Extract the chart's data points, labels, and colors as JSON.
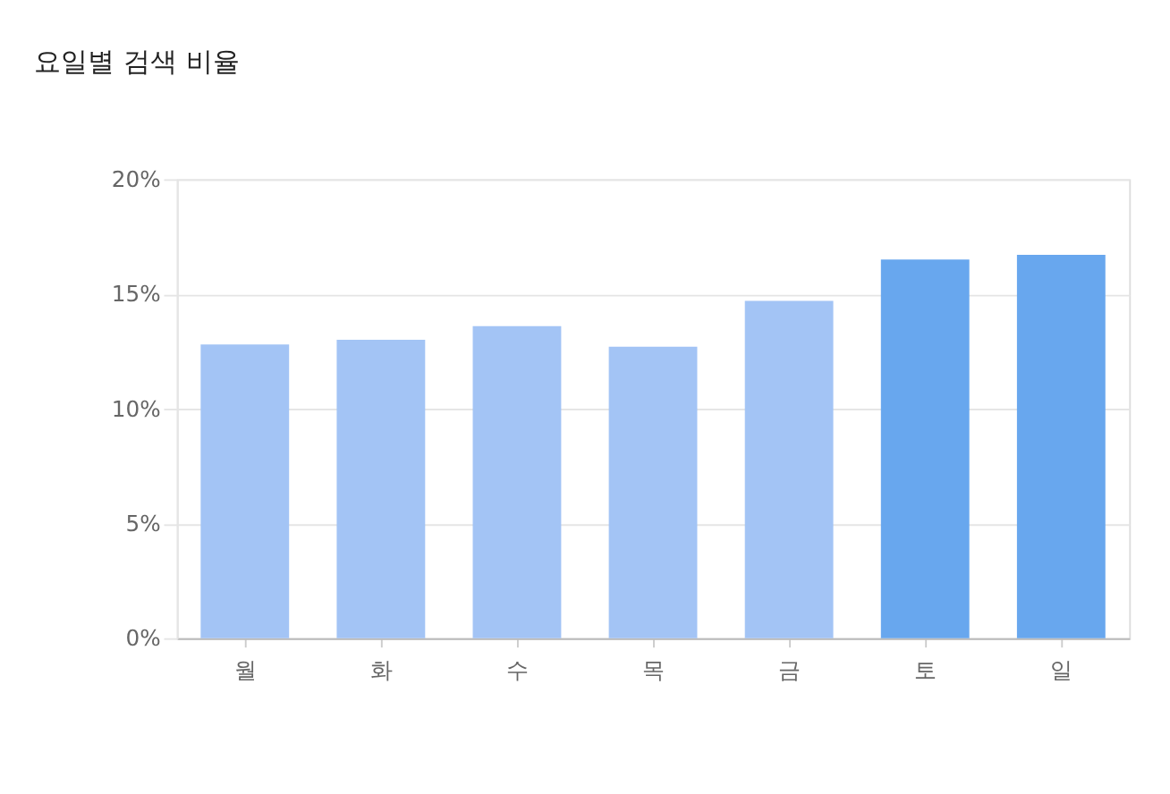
{
  "chart_data": {
    "type": "bar",
    "title": "요일별 검색 비율",
    "categories": [
      "월",
      "화",
      "수",
      "목",
      "금",
      "토",
      "일"
    ],
    "values": [
      12.8,
      13.0,
      13.6,
      12.7,
      14.7,
      16.5,
      16.7
    ],
    "colors": [
      "#a3c4f5",
      "#a3c4f5",
      "#a3c4f5",
      "#a3c4f5",
      "#a3c4f5",
      "#68a7ee",
      "#68a7ee"
    ],
    "ylim": [
      0,
      20
    ],
    "yticks": [
      {
        "value": 0,
        "label": "0%"
      },
      {
        "value": 5,
        "label": "5%"
      },
      {
        "value": 10,
        "label": "10%"
      },
      {
        "value": 15,
        "label": "15%"
      },
      {
        "value": 20,
        "label": "20%"
      }
    ],
    "grid": "y",
    "legend": false
  }
}
